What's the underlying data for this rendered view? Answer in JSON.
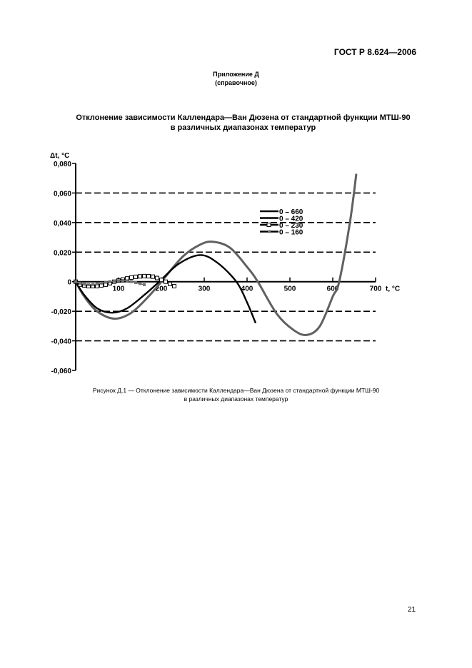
{
  "header": {
    "standard": "ГОСТ Р 8.624—2006"
  },
  "annex": {
    "title": "Приложение Д",
    "subtitle": "(справочное)"
  },
  "figure_title": {
    "line1": "Отклонение зависимости Каллендара—Ван Дюзена от стандартной функции МТШ-90",
    "line2": "в различных диапазонах температур"
  },
  "caption": {
    "line1": "Рисунок Д.1 — Отклонение зависимости Каллендара—Ван Дюзена от стандартной функции МТШ-90",
    "line2": "в различных диапазонах температур"
  },
  "page_number": "21",
  "chart_data": {
    "type": "line",
    "xlabel": "t, °C",
    "ylabel": "Δt, °C",
    "xlim": [
      0,
      700
    ],
    "ylim": [
      -0.06,
      0.08
    ],
    "xticks": [
      "100",
      "200",
      "300",
      "400",
      "500",
      "600",
      "700"
    ],
    "yticks": [
      "0,080",
      "0,060",
      "0,040",
      "0,020",
      "0",
      "-0,020",
      "-0,040",
      "-0,060"
    ],
    "ytick_values": [
      0.08,
      0.06,
      0.04,
      0.02,
      0,
      -0.02,
      -0.04,
      -0.06
    ],
    "xtick_values": [
      100,
      200,
      300,
      400,
      500,
      600,
      700
    ],
    "grid": "horizontal dashed",
    "legend_placement": "center-right",
    "series": [
      {
        "name": "0 – 660",
        "color": "#606060",
        "marker": "none",
        "x": [
          0,
          20,
          50,
          90,
          130,
          170,
          200,
          250,
          290,
          320,
          360,
          400,
          425,
          470,
          510,
          540,
          570,
          600,
          615,
          640,
          655
        ],
        "y": [
          0,
          -0.01,
          -0.02,
          -0.025,
          -0.021,
          -0.01,
          0,
          0.017,
          0.025,
          0.027,
          0.023,
          0.01,
          0,
          -0.022,
          -0.033,
          -0.036,
          -0.03,
          -0.01,
          0,
          0.04,
          0.073
        ]
      },
      {
        "name": "0 – 420",
        "color": "#000000",
        "marker": "none",
        "x": [
          0,
          20,
          50,
          85,
          120,
          160,
          195,
          240,
          290,
          330,
          375,
          400,
          420
        ],
        "y": [
          0,
          -0.009,
          -0.018,
          -0.021,
          -0.018,
          -0.009,
          0,
          0.012,
          0.018,
          0.013,
          0,
          -0.014,
          -0.028
        ]
      },
      {
        "name": "0 – 230",
        "color": "#000000",
        "marker": "square",
        "x": [
          0,
          10,
          20,
          30,
          40,
          50,
          60,
          70,
          80,
          90,
          100,
          110,
          120,
          130,
          140,
          150,
          160,
          170,
          180,
          190,
          200,
          210,
          220,
          230
        ],
        "y": [
          0,
          -0.002,
          -0.0025,
          -0.003,
          -0.003,
          -0.003,
          -0.0025,
          -0.002,
          -0.001,
          0,
          0.0008,
          0.0015,
          0.0022,
          0.0028,
          0.0033,
          0.0036,
          0.0038,
          0.0037,
          0.0034,
          0.0025,
          0.0012,
          0,
          -0.0015,
          -0.003
        ]
      },
      {
        "name": "0 – 160",
        "color": "#707070",
        "marker": "dot",
        "x": [
          0,
          10,
          20,
          30,
          40,
          50,
          60,
          70,
          80,
          90,
          100,
          110,
          120,
          130,
          140,
          150,
          160
        ],
        "y": [
          0,
          -0.001,
          -0.0017,
          -0.002,
          -0.0019,
          -0.0015,
          -0.001,
          -0.0004,
          0,
          0.0004,
          0.0007,
          0.0008,
          0.0006,
          0.0001,
          -0.0006,
          -0.0013,
          -0.002
        ]
      }
    ]
  }
}
